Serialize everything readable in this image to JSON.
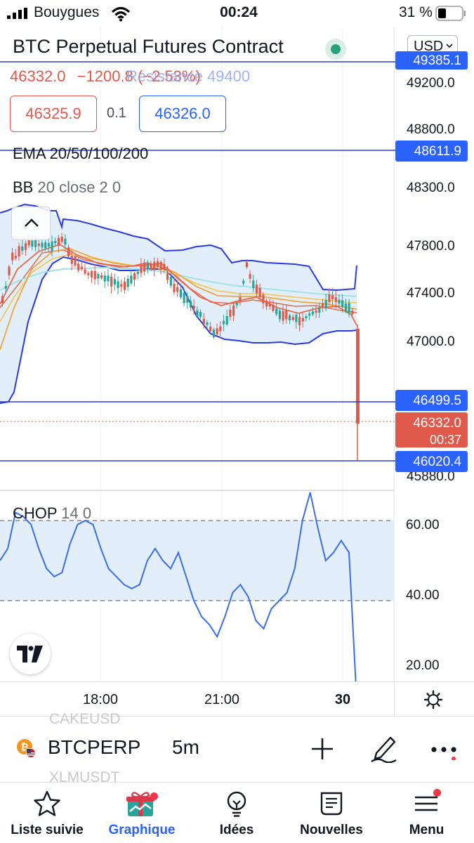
{
  "status_bar": {
    "carrier": "Bouygues",
    "time": "00:24",
    "battery": "31 %"
  },
  "header": {
    "symbol_title": "BTC Perpetual Futures Contract",
    "currency": "USD",
    "last_price": "46332.0",
    "change": "−1200.8 (−2.53%)",
    "ghost_text": "Resistance 49400",
    "bid": "46325.9",
    "spread": "0.1",
    "ask": "46326.0"
  },
  "indicators": {
    "ema": "EMA 20/50/100/200",
    "bb_name": "BB",
    "bb_params": "20 close 2 0",
    "chop_name": "CHOP",
    "chop_params": "14 0"
  },
  "price_axis": {
    "ticks": [
      "49200.0",
      "48800.0",
      "48300.0",
      "47800.0",
      "47400.0",
      "47000.0",
      "45880.0"
    ],
    "tags": {
      "top": "49385.1",
      "line2": "48611.9",
      "line3": "46499.5",
      "last": "46332.0",
      "countdown": "00:37",
      "line4": "46020.4"
    }
  },
  "chop_axis": {
    "ticks": [
      "60.00",
      "40.00",
      "20.00"
    ]
  },
  "time_axis": {
    "labels": [
      "18:00",
      "21:00",
      "30"
    ]
  },
  "chart_data": [
    {
      "type": "candlestick",
      "title": "BTCPERP 5m",
      "ylim": [
        45800,
        49500
      ],
      "series": [
        {
          "name": "EMA 20/50/100/200",
          "type": "line"
        },
        {
          "name": "BB 20 close 2 0",
          "type": "band"
        }
      ],
      "horizontal_lines": [
        49385.1,
        48611.9,
        46499.5,
        46020.4
      ],
      "last_price": 46332.0
    },
    {
      "type": "line",
      "title": "CHOP 14 0",
      "ylim": [
        15,
        72
      ],
      "zone": [
        38,
        62
      ],
      "approx_values": [
        50,
        53,
        62,
        61,
        59,
        53,
        48,
        46,
        47,
        54,
        59,
        60,
        59,
        53,
        48,
        46,
        44,
        43,
        44,
        50,
        53,
        50,
        48,
        52,
        46,
        40,
        36,
        34,
        31,
        36,
        42,
        44,
        41,
        35,
        33,
        38,
        40,
        42,
        48,
        60,
        67,
        58,
        50,
        52,
        55,
        52,
        10
      ]
    }
  ],
  "symbol_bar": {
    "symbol": "BTCPERP",
    "interval": "5m",
    "ghost_above": "CAKEUSD",
    "ghost_below": "XLMUSDT"
  },
  "tabs": [
    {
      "label": "Liste suivie",
      "icon": "star-icon"
    },
    {
      "label": "Graphique",
      "icon": "chart-gift-icon"
    },
    {
      "label": "Idées",
      "icon": "lightbulb-icon"
    },
    {
      "label": "Nouvelles",
      "icon": "newspaper-icon"
    },
    {
      "label": "Menu",
      "icon": "hamburger-menu-icon"
    }
  ],
  "colors": {
    "accent_blue": "#2962ff",
    "down_red": "#e05a4c",
    "up_green": "#26a69a",
    "bb_band_fill": "#e3eefb",
    "ema_orange": "#f2a33a",
    "ema_red": "#e8684a",
    "ema_cyan": "#9fe3e8",
    "ema_yellow": "#f5c85a"
  }
}
